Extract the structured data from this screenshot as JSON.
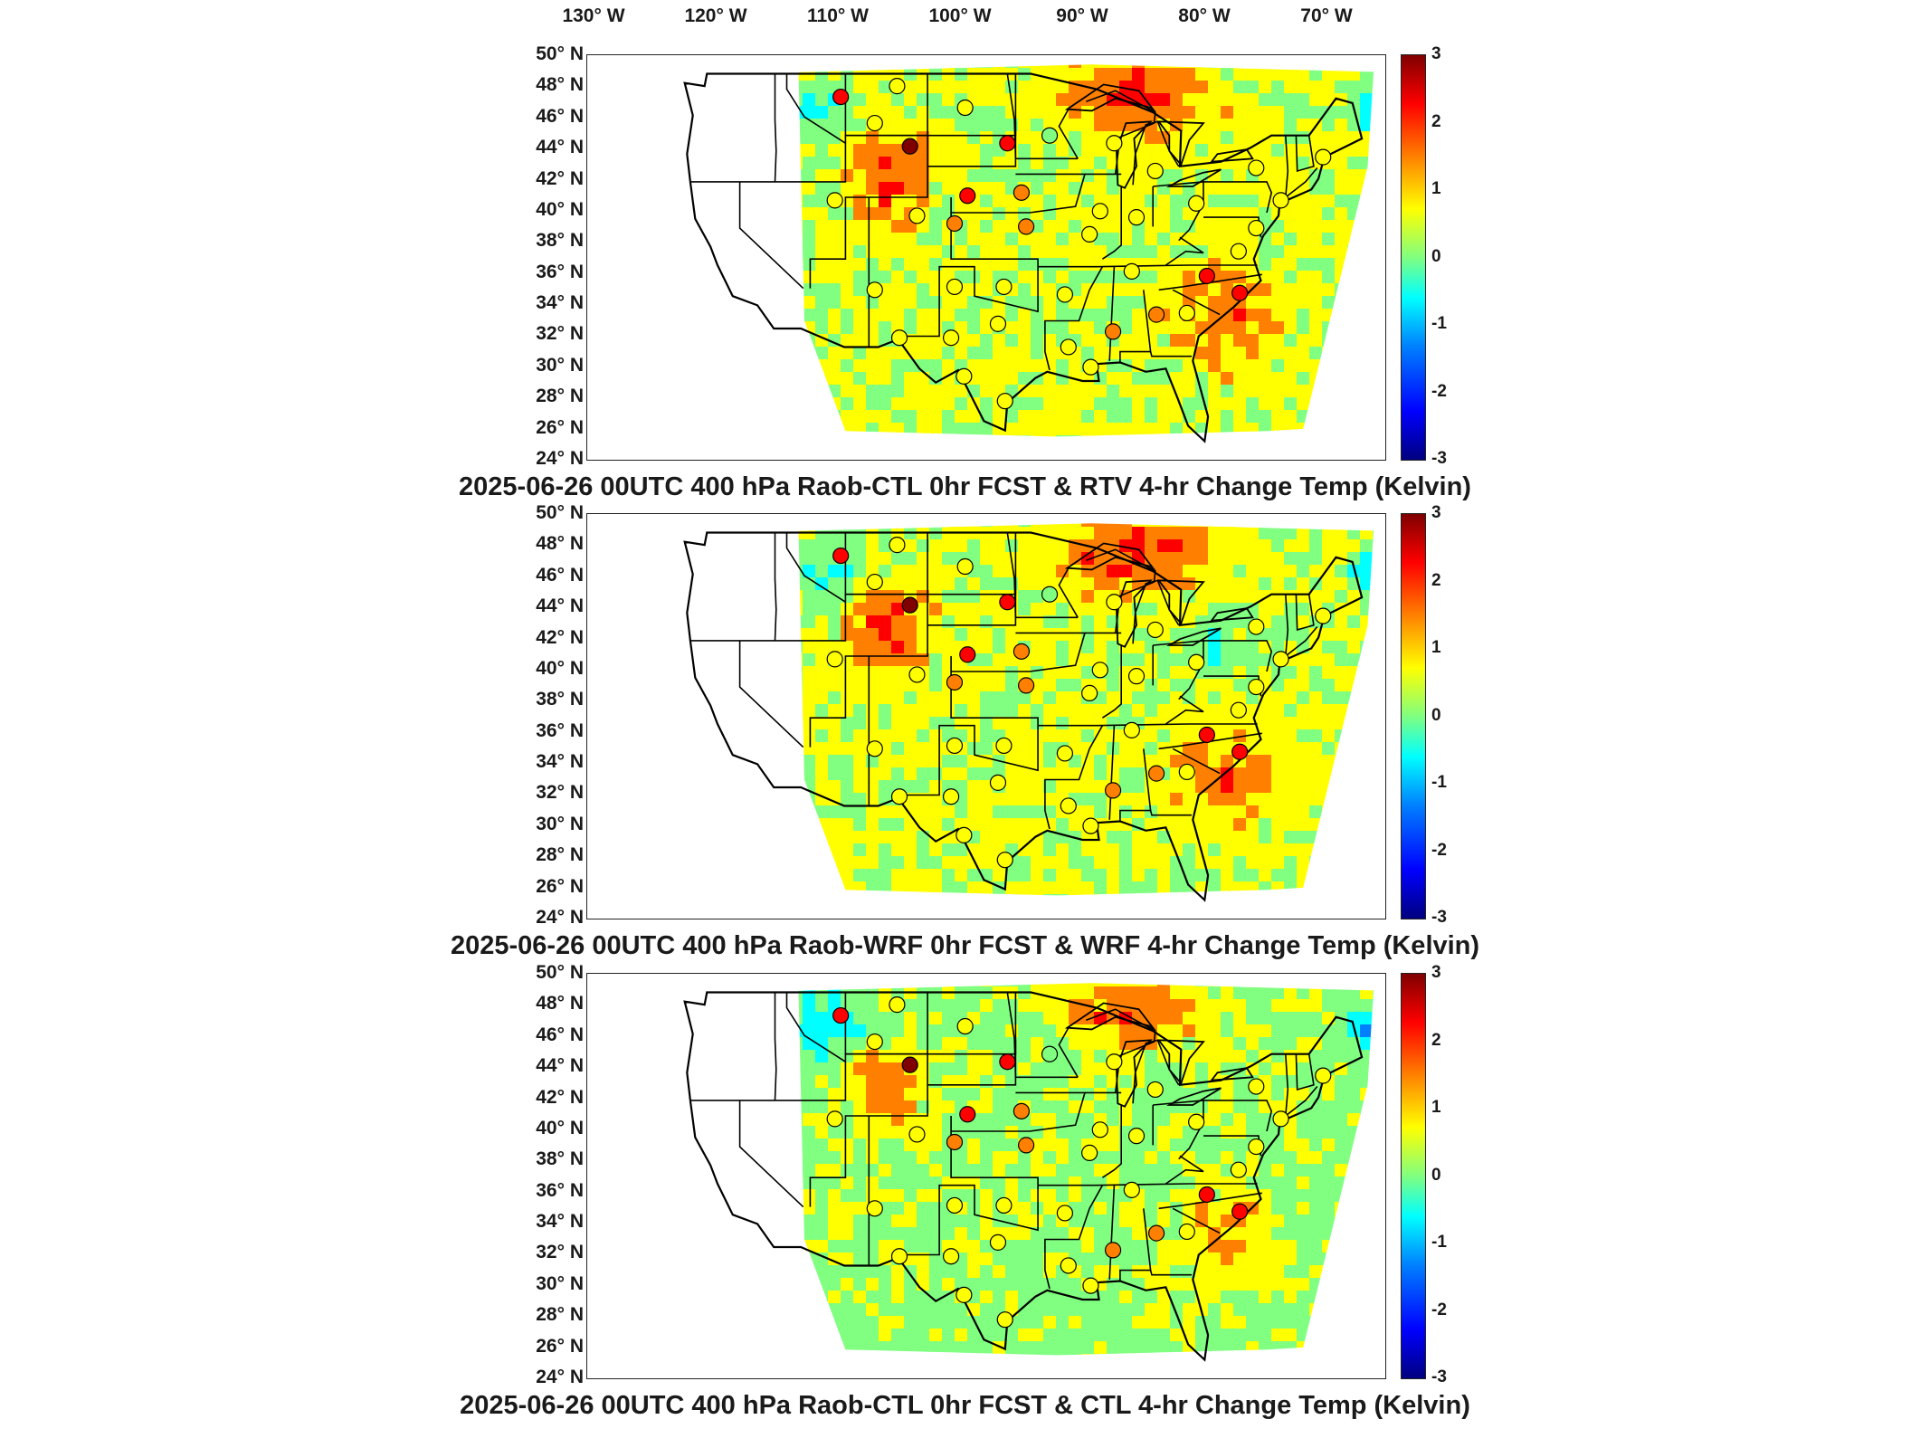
{
  "lon_labels": [
    "130° W",
    "120° W",
    "110° W",
    "100° W",
    "90° W",
    "80° W",
    "70° W"
  ],
  "lat_labels": [
    "50° N",
    "48° N",
    "46° N",
    "44° N",
    "42° N",
    "40° N",
    "38° N",
    "36° N",
    "34° N",
    "32° N",
    "30° N",
    "28° N",
    "26° N",
    "24° N"
  ],
  "colorbar": {
    "ticks": [
      "3",
      "2",
      "1",
      "0",
      "-1",
      "-2",
      "-3"
    ],
    "min": -3,
    "max": 3,
    "colors": [
      "#000080",
      "#0000ff",
      "#0080ff",
      "#00ffff",
      "#80ff80",
      "#ffff00",
      "#ff8000",
      "#ff0000",
      "#800000"
    ]
  },
  "panels": [
    {
      "title": "2025-06-26 00UTC 400 hPa Raob-CTL 0hr FCST & RTV 4-hr Change Temp (Kelvin)"
    },
    {
      "title": "2025-06-26 00UTC 400 hPa Raob-WRF 0hr FCST & WRF 4-hr Change Temp (Kelvin)"
    },
    {
      "title": "2025-06-26 00UTC 400 hPa Raob-CTL 0hr FCST & CTL 4-hr Change Temp (Kelvin)"
    }
  ],
  "stations": [
    {
      "lon": -111.4,
      "lat": 47.5,
      "v": [
        2.2,
        2.2,
        2.3
      ]
    },
    {
      "lon": -106.6,
      "lat": 48.2,
      "v": [
        0.4,
        0.4,
        0.4
      ]
    },
    {
      "lon": -100.8,
      "lat": 46.8,
      "v": [
        0.5,
        0.5,
        0.5
      ]
    },
    {
      "lon": -108.5,
      "lat": 45.8,
      "v": [
        0.6,
        0.6,
        0.6
      ]
    },
    {
      "lon": -105.5,
      "lat": 44.3,
      "v": [
        2.8,
        2.9,
        2.9
      ]
    },
    {
      "lon": -97.2,
      "lat": 44.5,
      "v": [
        2.1,
        2.1,
        2.1
      ]
    },
    {
      "lon": -93.6,
      "lat": 45.0,
      "v": [
        0.3,
        0.3,
        0.3
      ]
    },
    {
      "lon": -100.6,
      "lat": 41.1,
      "v": [
        2.5,
        2.5,
        2.5
      ]
    },
    {
      "lon": -96.0,
      "lat": 41.3,
      "v": [
        1.2,
        1.2,
        1.2
      ]
    },
    {
      "lon": -104.9,
      "lat": 39.8,
      "v": [
        0.4,
        0.4,
        0.4
      ]
    },
    {
      "lon": -111.9,
      "lat": 40.8,
      "v": [
        0.6,
        0.6,
        0.6
      ]
    },
    {
      "lon": -101.7,
      "lat": 39.3,
      "v": [
        1.3,
        1.3,
        1.3
      ]
    },
    {
      "lon": -95.6,
      "lat": 39.1,
      "v": [
        1.5,
        1.5,
        1.5
      ]
    },
    {
      "lon": -89.3,
      "lat": 40.1,
      "v": [
        0.4,
        0.4,
        0.4
      ]
    },
    {
      "lon": -88.1,
      "lat": 44.5,
      "v": [
        0.5,
        0.5,
        0.5
      ]
    },
    {
      "lon": -84.6,
      "lat": 42.7,
      "v": [
        0.8,
        0.8,
        0.8
      ]
    },
    {
      "lon": -90.2,
      "lat": 38.6,
      "v": [
        0.6,
        0.6,
        0.6
      ]
    },
    {
      "lon": -86.2,
      "lat": 39.7,
      "v": [
        0.5,
        0.5,
        0.5
      ]
    },
    {
      "lon": -108.5,
      "lat": 35.0,
      "v": [
        0.6,
        0.6,
        0.6
      ]
    },
    {
      "lon": -101.7,
      "lat": 35.2,
      "v": [
        0.4,
        0.4,
        0.4
      ]
    },
    {
      "lon": -97.5,
      "lat": 35.2,
      "v": [
        1.1,
        1.1,
        1.1
      ]
    },
    {
      "lon": -92.3,
      "lat": 34.7,
      "v": [
        0.7,
        0.7,
        0.7
      ]
    },
    {
      "lon": -86.6,
      "lat": 36.2,
      "v": [
        0.6,
        0.6,
        0.6
      ]
    },
    {
      "lon": -84.5,
      "lat": 33.4,
      "v": [
        1.7,
        1.7,
        1.7
      ]
    },
    {
      "lon": -81.9,
      "lat": 33.5,
      "v": [
        0.5,
        0.5,
        0.5
      ]
    },
    {
      "lon": -80.2,
      "lat": 35.9,
      "v": [
        1.9,
        1.9,
        1.9
      ]
    },
    {
      "lon": -77.4,
      "lat": 34.8,
      "v": [
        2.0,
        2.0,
        2.0
      ]
    },
    {
      "lon": -77.5,
      "lat": 37.5,
      "v": [
        1.0,
        1.0,
        1.0
      ]
    },
    {
      "lon": -76.0,
      "lat": 39.0,
      "v": [
        1.0,
        1.0,
        1.0
      ]
    },
    {
      "lon": -81.1,
      "lat": 40.6,
      "v": [
        0.6,
        0.6,
        0.6
      ]
    },
    {
      "lon": -76.0,
      "lat": 42.9,
      "v": [
        0.8,
        0.8,
        0.8
      ]
    },
    {
      "lon": -70.3,
      "lat": 43.6,
      "v": [
        0.6,
        0.6,
        0.6
      ]
    },
    {
      "lon": -73.9,
      "lat": 40.8,
      "v": [
        0.9,
        0.9,
        0.9
      ]
    },
    {
      "lon": -90.1,
      "lat": 30.0,
      "v": [
        1.0,
        1.0,
        1.0
      ]
    },
    {
      "lon": -92.0,
      "lat": 31.3,
      "v": [
        0.5,
        0.5,
        0.5
      ]
    },
    {
      "lon": -97.4,
      "lat": 27.8,
      "v": [
        1.0,
        1.0,
        1.0
      ]
    },
    {
      "lon": -98.0,
      "lat": 32.8,
      "v": [
        0.7,
        0.7,
        0.7
      ]
    },
    {
      "lon": -106.4,
      "lat": 31.9,
      "v": [
        0.9,
        0.9,
        0.9
      ]
    },
    {
      "lon": -102.0,
      "lat": 31.9,
      "v": [
        0.6,
        0.6,
        0.6
      ]
    },
    {
      "lon": -100.9,
      "lat": 29.4,
      "v": [
        0.8,
        0.8,
        0.8
      ]
    },
    {
      "lon": -88.2,
      "lat": 32.3,
      "v": [
        1.3,
        1.3,
        1.3
      ]
    }
  ]
}
